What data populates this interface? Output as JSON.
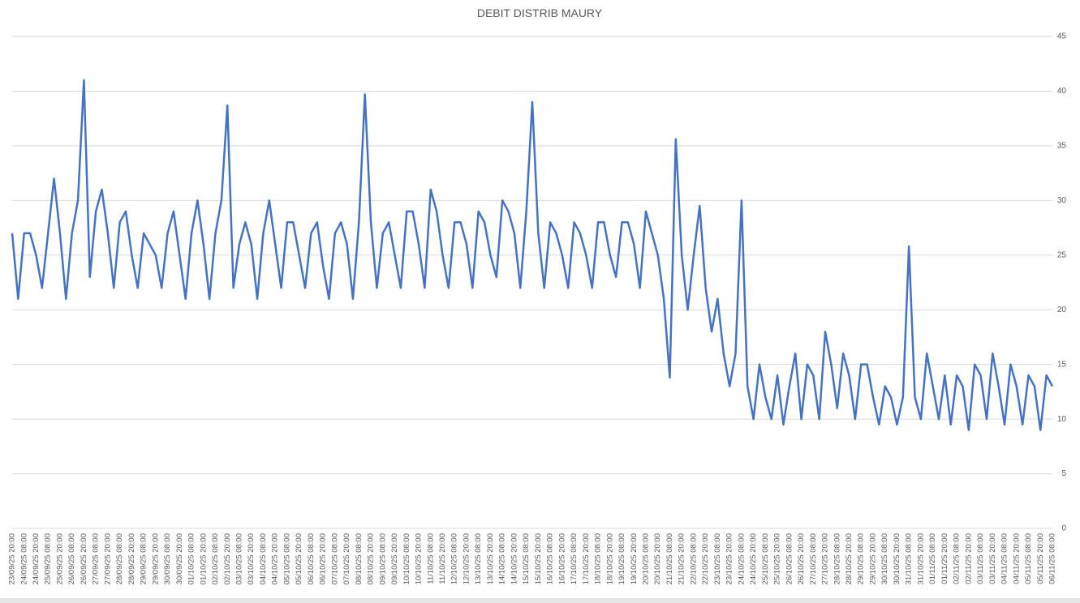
{
  "chart_data": {
    "type": "line",
    "title": "DEBIT DISTRIB MAURY",
    "categories": [
      "23/09/25 20:00",
      null,
      "24/09/25 08:00",
      null,
      "24/09/25 20:00",
      null,
      "25/09/25 08:00",
      null,
      "25/09/25 20:00",
      null,
      "26/09/25 08:00",
      null,
      "26/09/25 20:00",
      null,
      "27/09/25 08:00",
      null,
      "27/09/25 20:00",
      null,
      "28/09/25 08:00",
      null,
      "28/09/25 20:00",
      null,
      "29/09/25 08:00",
      null,
      "29/09/25 20:00",
      null,
      "30/09/25 08:00",
      null,
      "30/09/25 20:00",
      null,
      "01/10/25 08:00",
      null,
      "01/10/25 20:00",
      null,
      "02/10/25 08:00",
      null,
      "02/10/25 20:00",
      null,
      "03/10/25 08:00",
      null,
      "03/10/25 20:00",
      null,
      "04/10/25 08:00",
      null,
      "04/10/25 20:00",
      null,
      "05/10/25 08:00",
      null,
      "05/10/25 20:00",
      null,
      "06/10/25 08:00",
      null,
      "06/10/25 20:00",
      null,
      "07/10/25 08:00",
      null,
      "07/10/25 20:00",
      null,
      "08/10/25 08:00",
      null,
      "08/10/25 20:00",
      null,
      "09/10/25 08:00",
      null,
      "09/10/25 20:00",
      null,
      "10/10/25 08:00",
      null,
      "10/10/25 20:00",
      null,
      "11/10/25 08:00",
      null,
      "11/10/25 20:00",
      null,
      "12/10/25 08:00",
      null,
      "12/10/25 20:00",
      null,
      "13/10/25 08:00",
      null,
      "13/10/25 20:00",
      null,
      "14/10/25 08:00",
      null,
      "14/10/25 20:00",
      null,
      "15/10/25 08:00",
      null,
      "15/10/25 20:00",
      null,
      "16/10/25 08:00",
      null,
      "16/10/25 20:00",
      null,
      "17/10/25 08:00",
      null,
      "17/10/25 20:00",
      null,
      "18/10/25 08:00",
      null,
      "18/10/25 20:00",
      null,
      "19/10/25 08:00",
      null,
      "19/10/25 20:00",
      null,
      "20/10/25 08:00",
      null,
      "20/10/25 20:00",
      null,
      "21/10/25 08:00",
      null,
      "21/10/25 20:00",
      null,
      "22/10/25 08:00",
      null,
      "22/10/25 20:00",
      null,
      "23/10/25 08:00",
      null,
      "23/10/25 20:00",
      null,
      "24/10/25 08:00",
      null,
      "24/10/25 20:00",
      null,
      "25/10/25 08:00",
      null,
      "25/10/25 20:00",
      null,
      "26/10/25 08:00",
      null,
      "26/10/25 20:00",
      null,
      "27/10/25 08:00",
      null,
      "27/10/25 20:00",
      null,
      "28/10/25 08:00",
      null,
      "28/10/25 20:00",
      null,
      "29/10/25 08:00",
      null,
      "29/10/25 20:00",
      null,
      "30/10/25 08:00",
      null,
      "30/10/25 20:00",
      null,
      "31/10/25 08:00",
      null,
      "31/10/25 20:00",
      null,
      "01/11/25 08:00",
      null,
      "01/11/25 20:00",
      null,
      "02/11/25 08:00",
      null,
      "02/11/25 20:00",
      null,
      "03/11/25 08:00",
      null,
      "03/11/25 20:00",
      null,
      "04/11/25 08:00",
      null,
      "04/11/25 20:00",
      null,
      "05/11/25 08:00",
      null,
      "05/11/25 20:00",
      null,
      "06/11/25 08:00"
    ],
    "values": [
      27,
      21,
      27,
      27,
      25,
      22,
      27,
      32,
      27,
      21,
      27,
      30,
      41,
      23,
      29,
      31,
      27,
      22,
      28,
      29,
      25,
      22,
      27,
      26,
      25,
      22,
      27,
      29,
      25,
      21,
      27,
      30,
      26,
      21,
      27,
      30,
      38.7,
      22,
      26,
      28,
      26,
      21,
      27,
      30,
      26,
      22,
      28,
      28,
      25,
      22,
      27,
      28,
      24,
      21,
      27,
      28,
      26,
      21,
      28,
      39.7,
      28,
      22,
      27,
      28,
      25,
      22,
      29,
      29,
      26,
      22,
      31,
      29,
      25,
      22,
      28,
      28,
      26,
      22,
      29,
      28,
      25,
      23,
      30,
      29,
      27,
      22,
      29,
      39,
      27,
      22,
      28,
      27,
      25,
      22,
      28,
      27,
      25,
      22,
      28,
      28,
      25,
      23,
      28,
      28,
      26,
      22,
      29,
      27,
      25,
      21,
      13.8,
      35.6,
      25,
      20,
      25,
      29.5,
      22,
      18,
      21,
      16,
      13,
      16,
      30,
      13,
      10,
      15,
      12,
      10,
      14,
      9.5,
      13,
      16,
      10,
      15,
      14,
      10,
      18,
      15,
      11,
      16,
      14,
      10,
      15,
      15,
      12,
      9.5,
      13,
      12,
      9.5,
      12,
      25.8,
      12,
      10,
      16,
      13,
      10,
      14,
      9.5,
      14,
      13,
      9,
      15,
      14,
      10,
      16,
      13,
      9.5,
      15,
      13,
      9.5,
      14,
      13,
      9,
      14,
      13
    ],
    "color": "#4472c4",
    "ylim": [
      0,
      45
    ],
    "yticks": [
      0,
      5,
      10,
      15,
      20,
      25,
      30,
      35,
      40,
      45
    ],
    "grid": true
  }
}
